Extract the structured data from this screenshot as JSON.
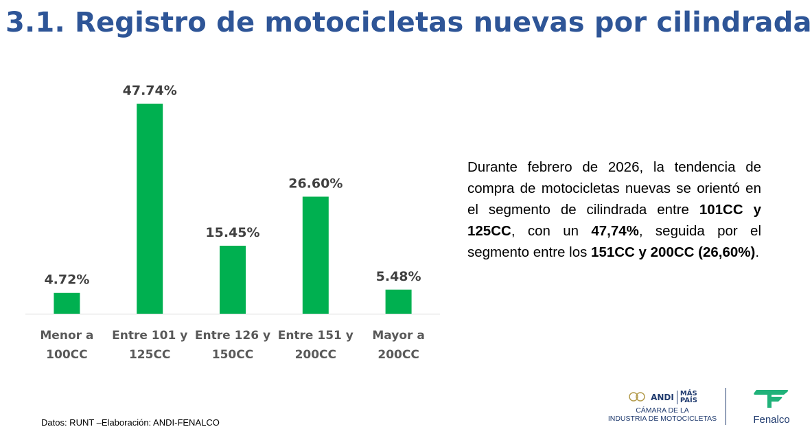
{
  "header": {
    "title": "3.1. Registro de motocicletas nuevas por cilindrada"
  },
  "chart_data": {
    "type": "bar",
    "title": "",
    "xlabel": "",
    "ylabel": "",
    "ylim": [
      0,
      50
    ],
    "grid": false,
    "categories": [
      [
        "Menor a",
        "100CC"
      ],
      [
        "Entre 101 y",
        "125CC"
      ],
      [
        "Entre 126 y",
        "150CC"
      ],
      [
        "Entre 151 y",
        "200CC"
      ],
      [
        "Mayor a",
        "200CC"
      ]
    ],
    "values": [
      4.72,
      47.74,
      15.45,
      26.6,
      5.48
    ],
    "data_labels": [
      "4.72%",
      "47.74%",
      "15.45%",
      "26.60%",
      "5.48%"
    ],
    "bar_color": "#00b050",
    "axis_color": "#d9d9d9"
  },
  "commentary": {
    "t1": "Durante febrero de 2026, la tendencia de compra de motocicletas nuevas se orientó en el segmento de cilindrada entre ",
    "b1": "101CC y 125CC",
    "t2": ", con un ",
    "b2": "47,74%",
    "t3": ", seguida por el segmento entre los ",
    "b3": "151CC y 200CC (26,60%)",
    "t4": "."
  },
  "footer": {
    "source": "Datos: RUNT –Elaboración: ANDI-FENALCO",
    "andi_logo": {
      "mark": "ANDI",
      "mas": "MÁS",
      "pais": "PAÍS",
      "line1": "CÁMARA DE LA",
      "line2": "INDUSTRIA DE MOTOCICLETAS"
    },
    "fenalco_logo": {
      "name": "Fenalco"
    }
  }
}
